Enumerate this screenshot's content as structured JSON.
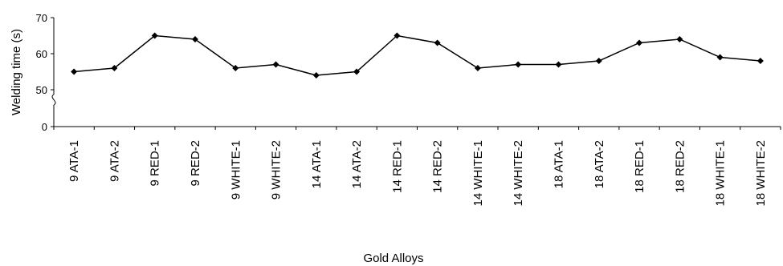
{
  "chart_data": {
    "type": "line",
    "xlabel": "Gold Alloys",
    "ylabel": "Welding time (s)",
    "categories": [
      "9 ATA-1",
      "9 ATA-2",
      "9 RED-1",
      "9 RED-2",
      "9 WHITE-1",
      "9 WHITE-2",
      "14 ATA-1",
      "14 ATA-2",
      "14 RED-1",
      "14 RED-2",
      "14 WHITE-1",
      "14 WHITE-2",
      "18 ATA-1",
      "18 ATA-2",
      "18 RED-1",
      "18 RED-2",
      "18 WHITE-1",
      "18 WHITE-2"
    ],
    "series": [
      {
        "values": [
          55,
          56,
          65,
          64,
          56,
          57,
          54,
          55,
          65,
          63,
          56,
          57,
          57,
          58,
          63,
          64,
          59,
          58
        ]
      }
    ],
    "yticks": [
      "0",
      "50",
      "60",
      "70"
    ],
    "ylim": [
      50,
      70
    ],
    "axis_break": "between 0 and 50",
    "grid": false,
    "legend": "none",
    "colors": {
      "line": "#000000",
      "marker": "#000000"
    },
    "marker": "diamond"
  }
}
